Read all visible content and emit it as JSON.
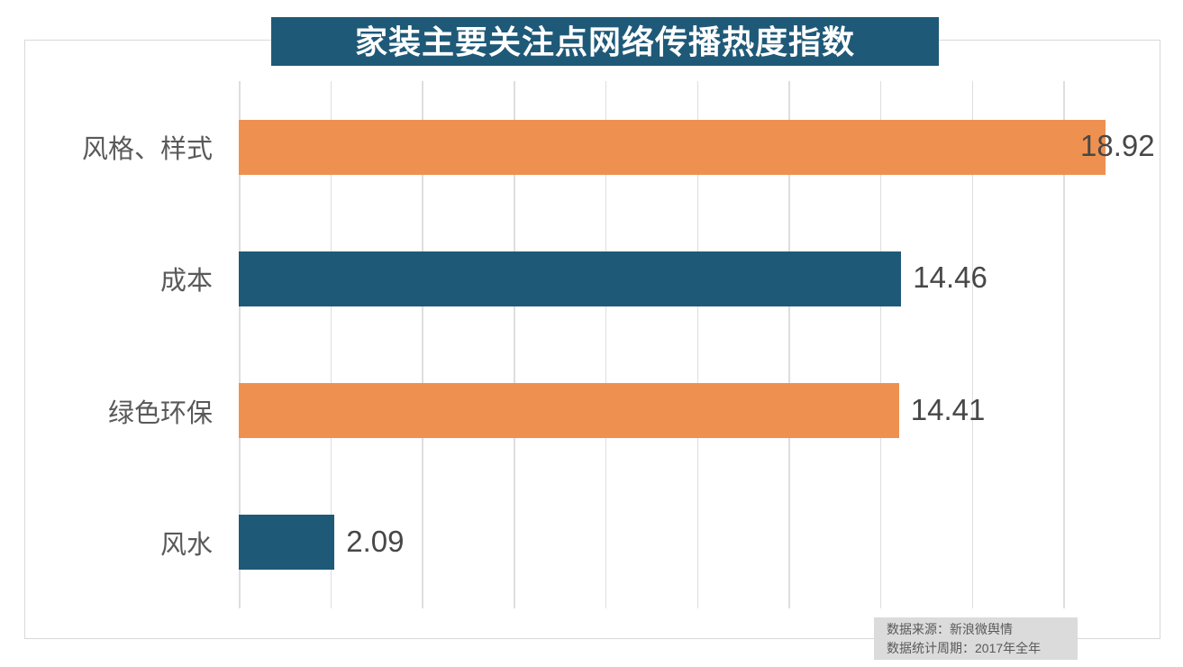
{
  "title": "家装主要关注点网络传播热度指数",
  "source_note": {
    "line1": "数据来源：新浪微舆情",
    "line2": "数据统计周期：2017年全年"
  },
  "colors": {
    "title_bg": "#1f5978",
    "title_text": "#ffffff",
    "bar_orange": "#ee9150",
    "bar_teal": "#1f5978",
    "gridline": "#dedede",
    "border": "#d8d8d8",
    "category_text": "#595959",
    "value_text": "#474747",
    "note_bg": "#dbdbdb",
    "note_text": "#595959",
    "background": "#ffffff"
  },
  "chart_data": {
    "type": "bar",
    "orientation": "horizontal",
    "title": "家装主要关注点网络传播热度指数",
    "categories": [
      "风格、样式",
      "成本",
      "绿色环保",
      "风水"
    ],
    "values": [
      18.92,
      14.46,
      14.41,
      2.09
    ],
    "value_labels": [
      "18.92",
      "14.46",
      "14.41",
      "2.09"
    ],
    "bar_colors": [
      "#ee9150",
      "#1f5978",
      "#ee9150",
      "#1f5978"
    ],
    "xlabel": "",
    "ylabel": "",
    "xlim": [
      0,
      20.1
    ],
    "gridline_interval": 2,
    "grid": true,
    "legend": false,
    "data_labels": "outside-end",
    "annotations": [
      "数据来源：新浪微舆情",
      "数据统计周期：2017年全年"
    ]
  }
}
